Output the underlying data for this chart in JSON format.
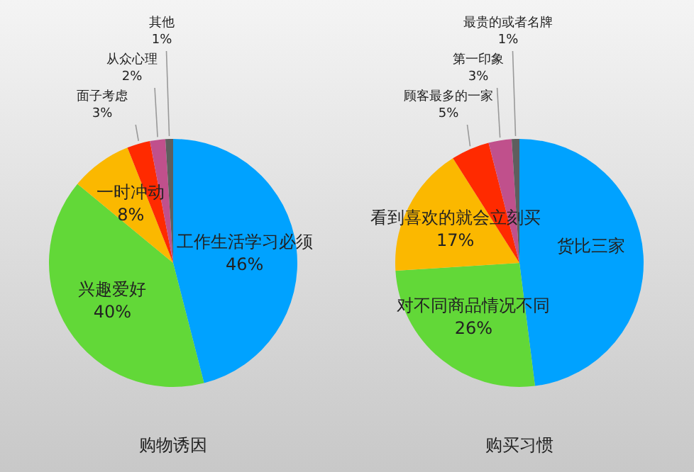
{
  "chart_data": [
    {
      "type": "pie",
      "title": "购物诱因",
      "categories": [
        "工作生活学习必须",
        "兴趣爱好",
        "一时冲动",
        "面子考虑",
        "从众心理",
        "其他"
      ],
      "values": [
        46,
        40,
        8,
        3,
        2,
        1
      ],
      "value_labels": [
        "46%",
        "40%",
        "8%",
        "3%",
        "2%",
        "1%"
      ],
      "colors": [
        "#00a2ff",
        "#62d838",
        "#fbb800",
        "#ff2a00",
        "#c0508c",
        "#5e5e5e"
      ],
      "legend": false
    },
    {
      "type": "pie",
      "title": "购买习惯",
      "categories": [
        "货比三家",
        "对不同商品情况不同",
        "看到喜欢的就会立刻买",
        "顾客最多的一家",
        "第一印象",
        "最贵的或者名牌"
      ],
      "values": [
        48,
        26,
        17,
        5,
        3,
        1
      ],
      "value_labels": [
        null,
        "26%",
        "17%",
        "5%",
        "3%",
        "1%"
      ],
      "colors": [
        "#00a2ff",
        "#62d838",
        "#fbb800",
        "#ff2a00",
        "#c0508c",
        "#5e5e5e"
      ],
      "legend": false
    }
  ]
}
